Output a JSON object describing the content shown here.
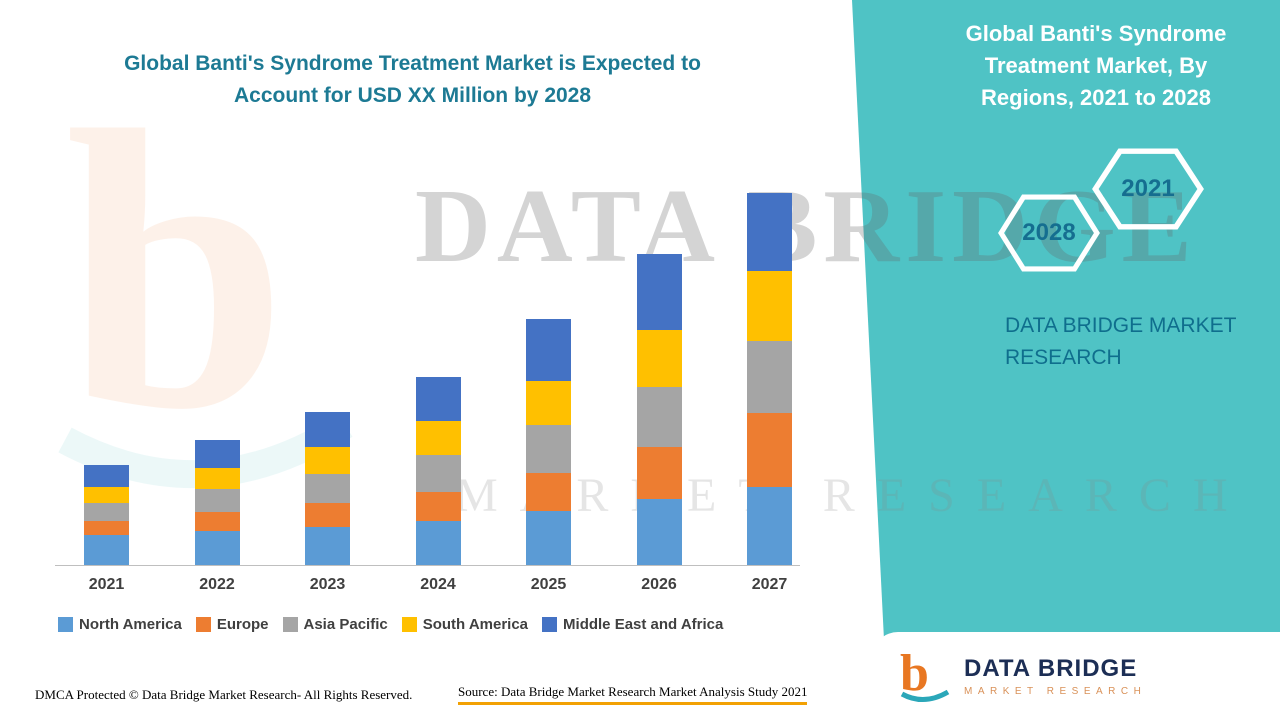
{
  "header": {
    "title": "Global Banti's Syndrome Treatment Market is Expected to Account for USD XX Million by 2028"
  },
  "sidebar": {
    "title": "Global Banti's Syndrome Treatment Market, By Regions, 2021 to 2028",
    "hex_left": "2028",
    "hex_right": "2021",
    "brand": "DATA BRIDGE MARKET RESEARCH"
  },
  "watermark": {
    "line1": "DATA BRIDGE",
    "line2": "MARKET RESEARCH"
  },
  "logo_box": {
    "name": "DATA BRIDGE",
    "sub": "MARKET RESEARCH"
  },
  "footer": {
    "dmca": "DMCA Protected © Data Bridge Market Research- All Rights Reserved.",
    "source": "Source: Data Bridge Market Research Market Analysis Study 2021"
  },
  "colors": {
    "accent_teal": "#4FC3C5",
    "title_text": "#1D7A94",
    "hex_year_text": "#156E90",
    "sidebar_brand_text": "#0F6E8D",
    "source_underline": "#F2A104",
    "logo_navy": "#1C2E55",
    "logo_orange": "#E87722"
  },
  "chart_data": {
    "type": "bar",
    "stacked": true,
    "title": "Global Banti's Syndrome Treatment Market is Expected to Account for USD XX Million by 2028",
    "categories": [
      "2021",
      "2022",
      "2023",
      "2024",
      "2025",
      "2026",
      "2027"
    ],
    "series": [
      {
        "name": "North America",
        "color": "#5B9BD5",
        "values": [
          30,
          34,
          38,
          44,
          54,
          66,
          78
        ]
      },
      {
        "name": "Europe",
        "color": "#ED7D31",
        "values": [
          14,
          19,
          24,
          29,
          38,
          52,
          74
        ]
      },
      {
        "name": "Asia Pacific",
        "color": "#A5A5A5",
        "values": [
          18,
          23,
          29,
          37,
          48,
          60,
          72
        ]
      },
      {
        "name": "South America",
        "color": "#FFC000",
        "values": [
          16,
          21,
          27,
          34,
          44,
          57,
          70
        ]
      },
      {
        "name": "Middle East and Africa",
        "color": "#4472C4",
        "values": [
          22,
          28,
          35,
          44,
          62,
          76,
          78
        ]
      }
    ],
    "xlabel": "",
    "ylabel": "",
    "value_axis_visible": false,
    "values_note": "no numeric axis shown on chart; stacked segment values are relative estimates",
    "legend_position": "bottom",
    "gridlines": false
  }
}
